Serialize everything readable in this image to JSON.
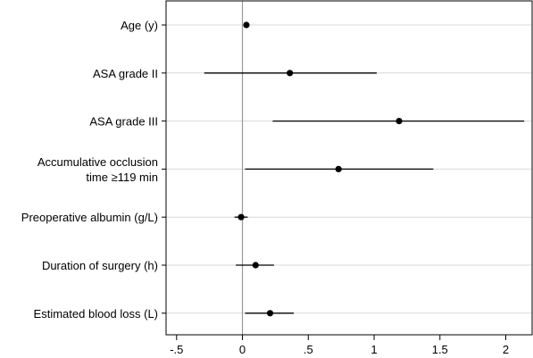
{
  "chart_data": {
    "type": "scatter",
    "subtype": "forest-plot",
    "title": "",
    "xlabel": "",
    "ylabel": "",
    "xlim": [
      -0.58,
      2.2
    ],
    "xticks": [
      {
        "value": -0.5,
        "label": "-.5"
      },
      {
        "value": 0,
        "label": "0"
      },
      {
        "value": 0.5,
        "label": ".5"
      },
      {
        "value": 1,
        "label": "1"
      },
      {
        "value": 1.5,
        "label": "1.5"
      },
      {
        "value": 2,
        "label": "2"
      }
    ],
    "reference_line": 0,
    "grid": "horizontal",
    "rows": [
      {
        "label": [
          "Age (y)"
        ],
        "estimate": 0.03,
        "lower": 0.03,
        "upper": 0.03
      },
      {
        "label": [
          "ASA grade II"
        ],
        "estimate": 0.36,
        "lower": -0.29,
        "upper": 1.02
      },
      {
        "label": [
          "ASA grade III"
        ],
        "estimate": 1.19,
        "lower": 0.23,
        "upper": 2.14
      },
      {
        "label": [
          "Accumulative occlusion",
          "time ≥119 min"
        ],
        "estimate": 0.73,
        "lower": 0.02,
        "upper": 1.45
      },
      {
        "label": [
          "Preoperative albumin (g/L)"
        ],
        "estimate": -0.01,
        "lower": -0.06,
        "upper": 0.04
      },
      {
        "label": [
          "Duration of surgery (h)"
        ],
        "estimate": 0.1,
        "lower": -0.05,
        "upper": 0.24
      },
      {
        "label": [
          "Estimated blood loss (L)"
        ],
        "estimate": 0.21,
        "lower": 0.02,
        "upper": 0.39
      }
    ]
  },
  "colors": {
    "point": "#000000",
    "ci_line": "#000000",
    "grid": "#d9d9d9",
    "reference": "#999999",
    "axis": "#000000"
  }
}
